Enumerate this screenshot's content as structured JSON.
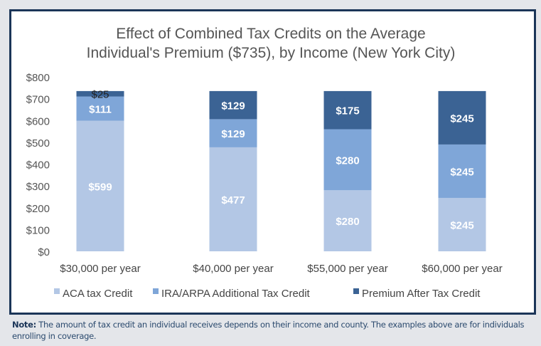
{
  "chart_data": {
    "type": "bar",
    "stacked": true,
    "title_lines": [
      "Effect of Combined Tax Credits on the Average",
      "Individual's Premium ($735), by Income (New York City)"
    ],
    "categories": [
      "$30,000 per year",
      "$40,000 per year",
      "$55,000 per year",
      "$60,000 per year"
    ],
    "series": [
      {
        "name": "ACA tax Credit",
        "values": [
          599,
          477,
          280,
          245
        ],
        "color": "#b3c7e5",
        "label_color": "#ffffff"
      },
      {
        "name": "IRA/ARPA Additional Tax Credit",
        "values": [
          111,
          129,
          280,
          245
        ],
        "color": "#7fa6d8",
        "label_color": "#ffffff"
      },
      {
        "name": "Premium After Tax Credit",
        "values": [
          25,
          129,
          175,
          245
        ],
        "color": "#3b6394",
        "label_color": "#ffffff"
      }
    ],
    "data_labels": [
      [
        "$599",
        "$477",
        "$280",
        "$245"
      ],
      [
        "$111",
        "$129",
        "$280",
        "$245"
      ],
      [
        "$25",
        "$129",
        "$175",
        "$245"
      ]
    ],
    "yticks": [
      "$0",
      "$100",
      "$200",
      "$300",
      "$400",
      "$500",
      "$600",
      "$700",
      "$800"
    ],
    "ylim": [
      0,
      800
    ],
    "grid": false,
    "legend": "bottom"
  },
  "note": {
    "label": "Note:",
    "text": "The amount of tax credit an individual receives depends on their income and county. The examples above are for individuals enrolling in coverage."
  }
}
